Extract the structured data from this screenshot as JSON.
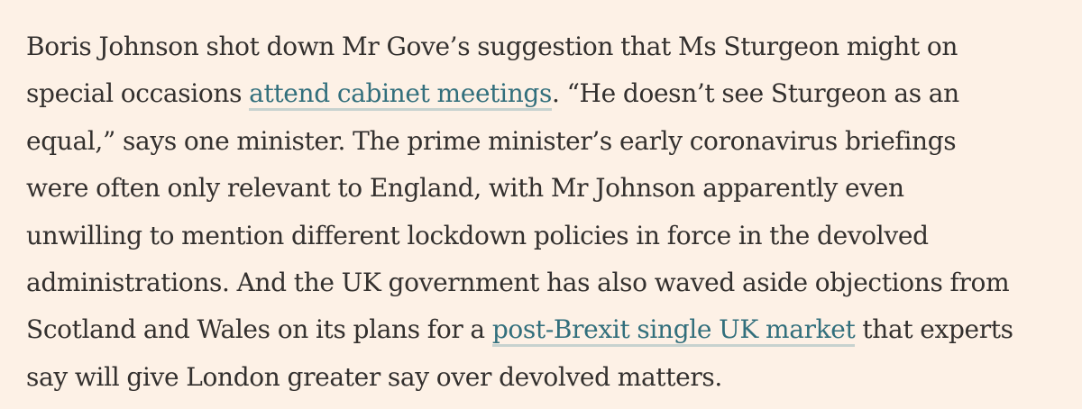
{
  "article": {
    "lines": [
      {
        "before": "Boris Johnson shot down Mr Gove’s suggestion that Ms Sturgeon might on"
      },
      {
        "before": "special occasions ",
        "link": "attend cabinet meetings",
        "after": ". “He doesn’t see Sturgeon as an"
      },
      {
        "before": "equal,” says one minister. The prime minister’s early coronavirus briefings"
      },
      {
        "before": "were often only relevant to England, with Mr Johnson apparently even"
      },
      {
        "before": "unwilling to mention different lockdown policies in force in the devolved"
      },
      {
        "before": "administrations. And the UK government has also waved aside objections from"
      },
      {
        "before": "Scotland and Wales on its plans for a ",
        "link": "post-Brexit single UK market",
        "after": " that experts"
      },
      {
        "before": "say will give London greater say over devolved matters."
      }
    ]
  },
  "colors": {
    "background": "#fdf1e6",
    "text": "#33302e",
    "link": "#326f7c",
    "link_underline": "#c7d2cf"
  }
}
